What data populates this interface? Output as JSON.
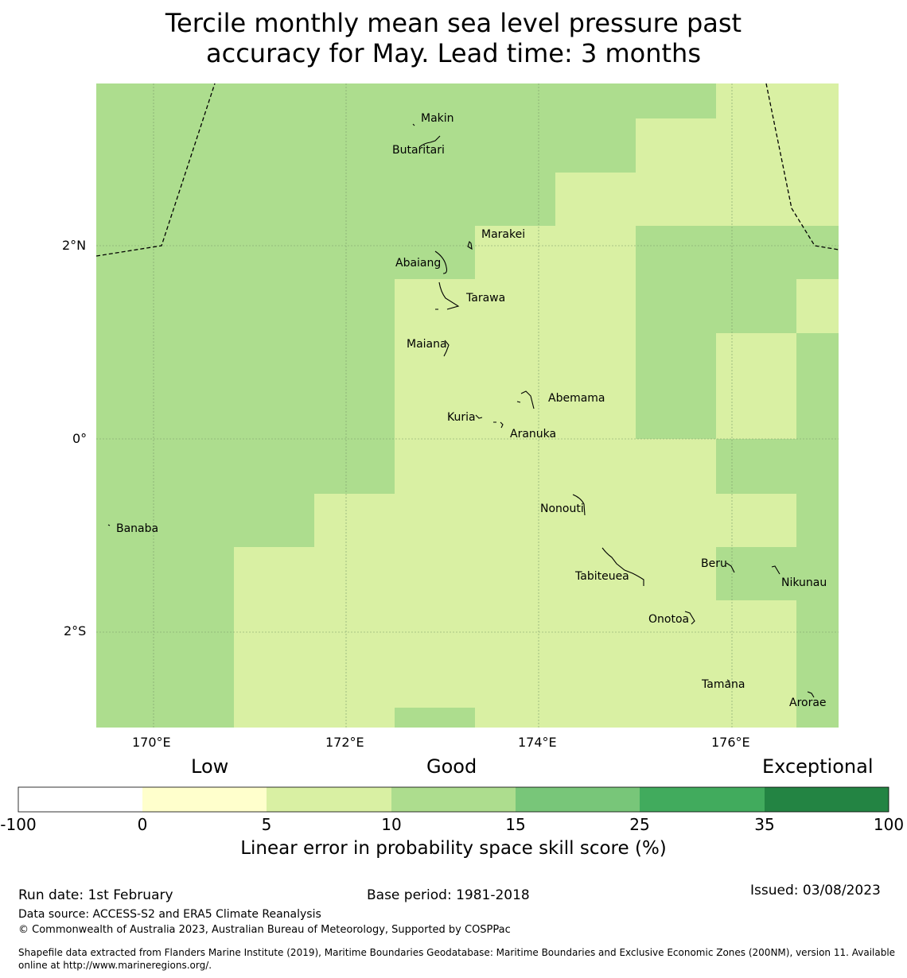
{
  "title_lines": [
    "Tercile monthly mean sea level pressure past",
    "accuracy for May. Lead time: 3 months"
  ],
  "axes": {
    "lat_labels": [
      "2°N",
      "0°",
      "2°S"
    ],
    "lon_labels": [
      "170°E",
      "172°E",
      "174°E",
      "176°E"
    ]
  },
  "islands": [
    {
      "name": "Makin"
    },
    {
      "name": "Butaritari"
    },
    {
      "name": "Marakei"
    },
    {
      "name": "Abaiang"
    },
    {
      "name": "Tarawa"
    },
    {
      "name": "Maiana"
    },
    {
      "name": "Abemama"
    },
    {
      "name": "Kuria"
    },
    {
      "name": "Aranuka"
    },
    {
      "name": "Banaba"
    },
    {
      "name": "Nonouti"
    },
    {
      "name": "Beru"
    },
    {
      "name": "Tabiteuea"
    },
    {
      "name": "Nikunau"
    },
    {
      "name": "Onotoa"
    },
    {
      "name": "Tamana"
    },
    {
      "name": "Arorae"
    }
  ],
  "legend": {
    "categories": [
      "Low",
      "Good",
      "Exceptional"
    ],
    "ticks": [
      "-100",
      "0",
      "5",
      "10",
      "15",
      "25",
      "35",
      "100"
    ],
    "colors": [
      "#ffffff",
      "#ffffcc",
      "#d9f0a3",
      "#addd8e",
      "#78c679",
      "#41ab5d",
      "#238443"
    ],
    "title": "Linear error in probability space skill score (%)"
  },
  "palette": {
    "band_5_10": "#d9f0a3",
    "band_10_15": "#addd8e"
  },
  "footer": {
    "run_date": "Run date: 1st February",
    "base_period": "Base period: 1981-2018",
    "issued": "Issued: 03/08/2023",
    "data_source": "Data source: ACCESS-S2 and ERA5 Climate Reanalysis",
    "copyright": "© Commonwealth of Australia 2023, Australian Bureau of Meteorology, Supported by COSPPac",
    "shapefile_line1": "Shapefile data extracted from Flanders Marine Institute (2019), Maritime Boundaries Geodatabase: Maritime Boundaries and Exclusive Economic Zones (200NM), version 11. Available",
    "shapefile_line2": "online at http://www.marineregions.org/."
  }
}
